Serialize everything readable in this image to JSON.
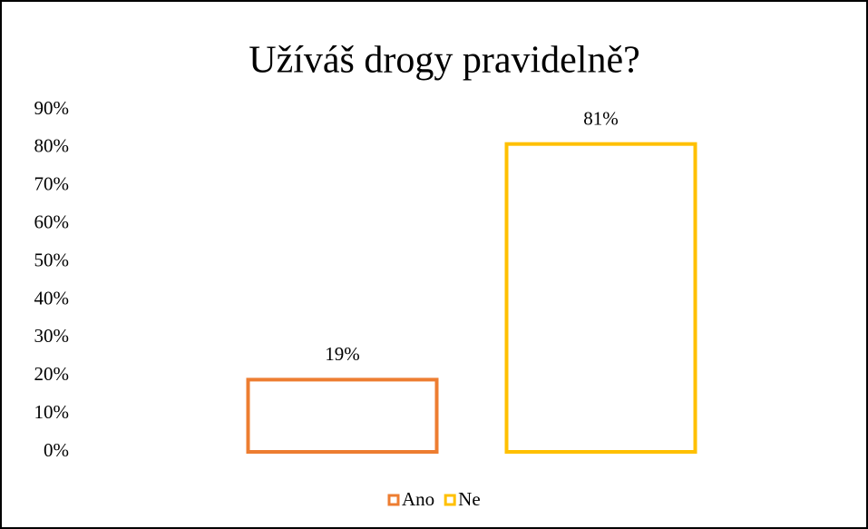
{
  "chart_data": {
    "type": "bar",
    "title": "Užíváš drogy pravidelně?",
    "categories": [
      null
    ],
    "series": [
      {
        "name": "Ano",
        "color": "#ED7D31",
        "values": [
          19
        ],
        "value_labels": [
          "19%"
        ]
      },
      {
        "name": "Ne",
        "color": "#FFC000",
        "values": [
          81
        ],
        "value_labels": [
          "81%"
        ]
      }
    ],
    "ylim": [
      0,
      90
    ],
    "yticks": [
      {
        "value": 0,
        "label": "0%"
      },
      {
        "value": 10,
        "label": "10%"
      },
      {
        "value": 20,
        "label": "20%"
      },
      {
        "value": 30,
        "label": "30%"
      },
      {
        "value": 40,
        "label": "40%"
      },
      {
        "value": 50,
        "label": "50%"
      },
      {
        "value": 60,
        "label": "60%"
      },
      {
        "value": 70,
        "label": "70%"
      },
      {
        "value": 80,
        "label": "80%"
      },
      {
        "value": 90,
        "label": "90%"
      }
    ],
    "grid": false,
    "legend": "bottom"
  }
}
